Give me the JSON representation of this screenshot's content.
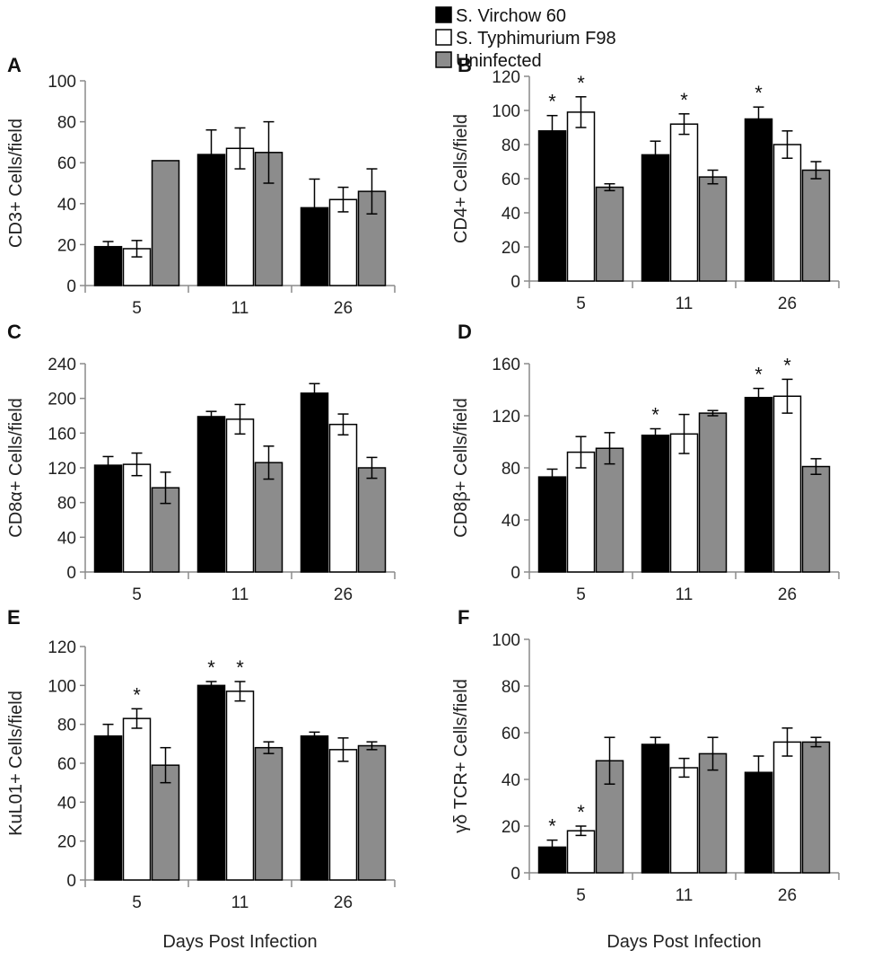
{
  "chart_data": [
    {
      "panel": "A",
      "type": "bar",
      "ylabel": "CD3+ Cells/field",
      "xlabel": "",
      "ylim": [
        0,
        100
      ],
      "yticks": [
        0,
        20,
        40,
        60,
        80,
        100
      ],
      "categories": [
        "5",
        "11",
        "26"
      ],
      "series": [
        {
          "name": "S. Virchow 60",
          "values": [
            19,
            64,
            38
          ],
          "errors": [
            2.5,
            12,
            14
          ]
        },
        {
          "name": "S. Typhimurium F98",
          "values": [
            18,
            67,
            42
          ],
          "errors": [
            4,
            10,
            6
          ]
        },
        {
          "name": "Uninfected",
          "values": [
            61,
            65,
            46
          ],
          "errors": [
            0,
            15,
            11
          ]
        }
      ],
      "annotations": []
    },
    {
      "panel": "B",
      "type": "bar",
      "ylabel": "CD4+ Cells/field",
      "xlabel": "",
      "ylim": [
        0,
        120
      ],
      "yticks": [
        0,
        20,
        40,
        60,
        80,
        100,
        120
      ],
      "categories": [
        "5",
        "11",
        "26"
      ],
      "series": [
        {
          "name": "S. Virchow 60",
          "values": [
            88,
            74,
            95
          ],
          "errors": [
            9,
            8,
            7
          ]
        },
        {
          "name": "S. Typhimurium F98",
          "values": [
            99,
            92,
            80
          ],
          "errors": [
            9,
            6,
            8
          ]
        },
        {
          "name": "Uninfected",
          "values": [
            55,
            61,
            65
          ],
          "errors": [
            2,
            4,
            5
          ]
        }
      ],
      "annotations": [
        {
          "text": "*",
          "category": 0,
          "series": 0
        },
        {
          "text": "*",
          "category": 0,
          "series": 1
        },
        {
          "text": "*",
          "category": 1,
          "series": 1
        },
        {
          "text": "*",
          "category": 2,
          "series": 0
        }
      ]
    },
    {
      "panel": "C",
      "type": "bar",
      "ylabel": "CD8α+ Cells/field",
      "xlabel": "",
      "ylim": [
        0,
        240
      ],
      "yticks": [
        0,
        40,
        80,
        120,
        160,
        200,
        240
      ],
      "categories": [
        "5",
        "11",
        "26"
      ],
      "series": [
        {
          "name": "S. Virchow 60",
          "values": [
            123,
            179,
            206
          ],
          "errors": [
            10,
            6,
            11
          ]
        },
        {
          "name": "S. Typhimurium F98",
          "values": [
            124,
            176,
            170
          ],
          "errors": [
            13,
            17,
            12
          ]
        },
        {
          "name": "Uninfected",
          "values": [
            97,
            126,
            120
          ],
          "errors": [
            18,
            19,
            12
          ]
        }
      ],
      "annotations": []
    },
    {
      "panel": "D",
      "type": "bar",
      "ylabel": "CD8β+ Cells/field",
      "xlabel": "",
      "ylim": [
        0,
        160
      ],
      "yticks": [
        0,
        40,
        80,
        120,
        160
      ],
      "categories": [
        "5",
        "11",
        "26"
      ],
      "series": [
        {
          "name": "S. Virchow 60",
          "values": [
            73,
            105,
            134
          ],
          "errors": [
            6,
            5,
            7
          ]
        },
        {
          "name": "S. Typhimurium F98",
          "values": [
            92,
            106,
            135
          ],
          "errors": [
            12,
            15,
            13
          ]
        },
        {
          "name": "Uninfected",
          "values": [
            95,
            122,
            81
          ],
          "errors": [
            12,
            2,
            6
          ]
        }
      ],
      "annotations": [
        {
          "text": "*",
          "category": 1,
          "series": 0
        },
        {
          "text": "*",
          "category": 2,
          "series": 0
        },
        {
          "text": "*",
          "category": 2,
          "series": 1
        }
      ]
    },
    {
      "panel": "E",
      "type": "bar",
      "ylabel": "KuL01+ Cells/field",
      "xlabel": "Days Post Infection",
      "ylim": [
        0,
        120
      ],
      "yticks": [
        0,
        20,
        40,
        60,
        80,
        100,
        120
      ],
      "categories": [
        "5",
        "11",
        "26"
      ],
      "series": [
        {
          "name": "S. Virchow 60",
          "values": [
            74,
            100,
            74
          ],
          "errors": [
            6,
            2,
            2
          ]
        },
        {
          "name": "S. Typhimurium F98",
          "values": [
            83,
            97,
            67
          ],
          "errors": [
            5,
            5,
            6
          ]
        },
        {
          "name": "Uninfected",
          "values": [
            59,
            68,
            69
          ],
          "errors": [
            9,
            3,
            2
          ]
        }
      ],
      "annotations": [
        {
          "text": "*",
          "category": 0,
          "series": 1
        },
        {
          "text": "*",
          "category": 1,
          "series": 0
        },
        {
          "text": "*",
          "category": 1,
          "series": 1
        }
      ]
    },
    {
      "panel": "F",
      "type": "bar",
      "ylabel": "γδ TCR+ Cells/field",
      "xlabel": "Days Post Infection",
      "ylim": [
        0,
        100
      ],
      "yticks": [
        0,
        20,
        40,
        60,
        80,
        100
      ],
      "categories": [
        "5",
        "11",
        "26"
      ],
      "series": [
        {
          "name": "S. Virchow 60",
          "values": [
            11,
            55,
            43
          ],
          "errors": [
            3,
            3,
            7
          ]
        },
        {
          "name": "S. Typhimurium F98",
          "values": [
            18,
            45,
            56
          ],
          "errors": [
            2,
            4,
            6
          ]
        },
        {
          "name": "Uninfected",
          "values": [
            48,
            51,
            56
          ],
          "errors": [
            10,
            7,
            2
          ]
        }
      ],
      "annotations": [
        {
          "text": "*",
          "category": 0,
          "series": 0
        },
        {
          "text": "*",
          "category": 0,
          "series": 1
        }
      ]
    }
  ],
  "legend": {
    "placement": "top-center",
    "entries": [
      {
        "label": "S. Virchow 60",
        "color": "#000000"
      },
      {
        "label": "S. Typhimurium F98",
        "color": "#ffffff"
      },
      {
        "label": "Uninfected",
        "color": "#8c8c8c"
      }
    ]
  },
  "colors": {
    "series": [
      "#000000",
      "#ffffff",
      "#8c8c8c"
    ],
    "stroke": "#000000",
    "axis": "#8a8a8a"
  }
}
